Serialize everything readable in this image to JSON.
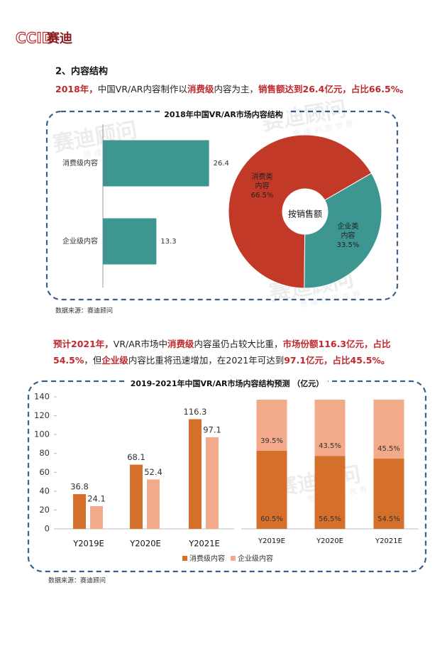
{
  "logo": {
    "latin": "CCID",
    "cjk": "赛迪"
  },
  "section_title": "2、内容结构",
  "paragraphs": [
    [
      {
        "text": "2018年，",
        "em": true
      },
      {
        "text": "中国VR/AR内容制作以",
        "em": false
      },
      {
        "text": "消费级",
        "em": true
      },
      {
        "text": "内容为主，",
        "em": false
      },
      {
        "text": "销售额达到26.4亿元，占比66.5%。",
        "em": true
      }
    ],
    [
      {
        "text": "预计2021年，",
        "em": true
      },
      {
        "text": "VR/AR市场中",
        "em": false
      },
      {
        "text": "消费级",
        "em": true
      },
      {
        "text": "内容虽仍占较大比重，",
        "em": false
      },
      {
        "text": "市场份额116.3亿元，占比54.5%",
        "em": true
      },
      {
        "text": "，但",
        "em": false
      },
      {
        "text": "企业级",
        "em": true
      },
      {
        "text": "内容比重将迅速增加，在2021年可达到",
        "em": false
      },
      {
        "text": "97.1亿元，占比45.5%。",
        "em": true
      }
    ]
  ],
  "figure_titles": [
    "2018年中国VR/AR市场内容结构",
    "2019-2021年中国VR/AR市场内容结构预测 （亿元）"
  ],
  "sources": [
    "数据来源：赛迪顾问",
    "数据来源：赛迪顾问"
  ],
  "watermark": {
    "name": "赛迪顾问",
    "slogan": "思维创造世界"
  },
  "chart_data": [
    {
      "type": "hbar",
      "categories": [
        "消费级内容",
        "企业级内容"
      ],
      "values": [
        26.4,
        13.3
      ],
      "color": "#3d9690",
      "xlim": [
        0,
        30
      ]
    },
    {
      "type": "donut",
      "categories": [
        "消费类内容",
        "企业类内容"
      ],
      "values": [
        66.5,
        33.5
      ],
      "value_labels": [
        "66.5%",
        "33.5%"
      ],
      "colors": [
        "#c23a27",
        "#3d9690"
      ],
      "center_label": "按销售额"
    },
    {
      "type": "bar",
      "categories": [
        "Y2019E",
        "Y2020E",
        "Y2021E"
      ],
      "ylim": [
        0,
        140
      ],
      "yticks": [
        0,
        20,
        40,
        60,
        80,
        100,
        120,
        140
      ],
      "series": [
        {
          "name": "消费级内容",
          "color": "#d5702a",
          "values": [
            36.8,
            68.1,
            116.3
          ]
        },
        {
          "name": "企业级内容",
          "color": "#f2aa8a",
          "values": [
            24.1,
            52.4,
            97.1
          ]
        }
      ],
      "legend": "bottom"
    },
    {
      "type": "stacked_bar",
      "categories": [
        "Y2019E",
        "Y2020E",
        "Y2021E"
      ],
      "ylim": [
        0,
        100
      ],
      "series": [
        {
          "color": "#d5702a",
          "values": [
            60.5,
            56.5,
            54.5
          ],
          "value_labels": [
            "60.5%",
            "56.5%",
            "54.5%"
          ]
        },
        {
          "color": "#f2aa8a",
          "values": [
            39.5,
            43.5,
            45.5
          ],
          "value_labels": [
            "39.5%",
            "43.5%",
            "45.5%"
          ]
        }
      ]
    }
  ]
}
